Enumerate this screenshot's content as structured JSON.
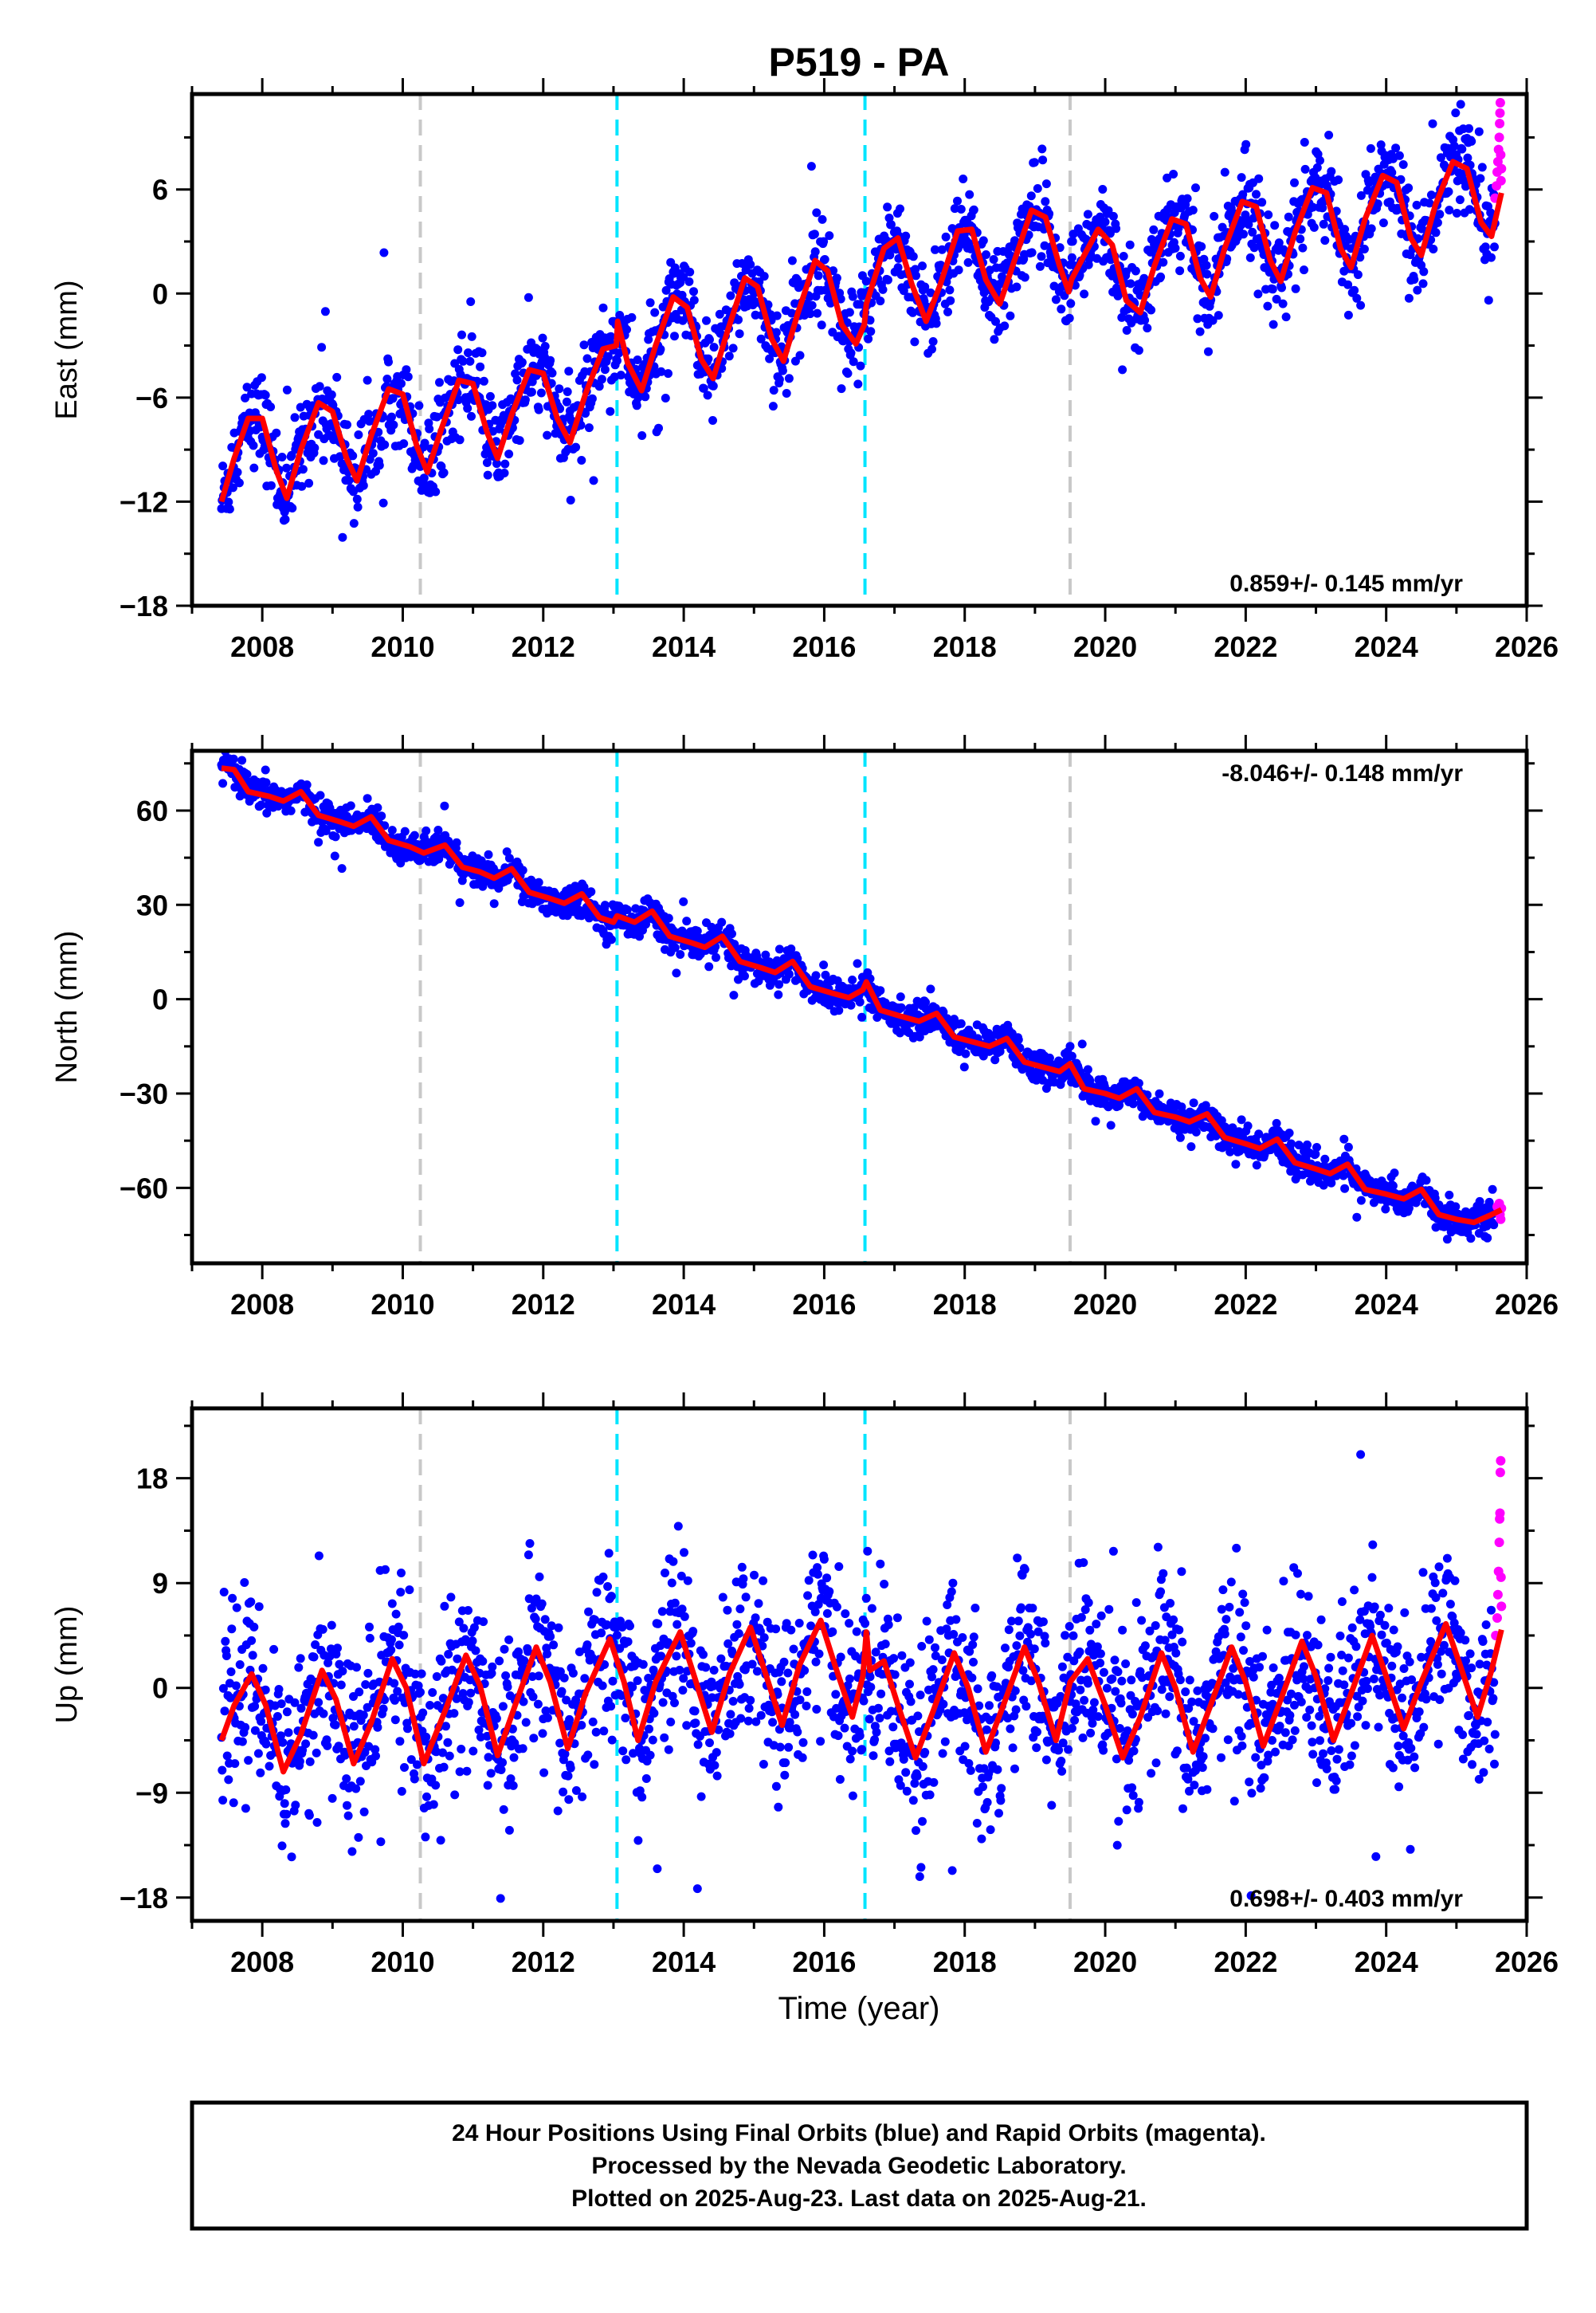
{
  "chart_data": {
    "title": "P519 - PA",
    "type": "scatter",
    "xlabel": "Time (year)",
    "xlim": [
      2007.0,
      2026.0
    ],
    "x_ticks": [
      2008,
      2010,
      2012,
      2014,
      2016,
      2018,
      2020,
      2022,
      2024,
      2026
    ],
    "colors": {
      "final": "#0000ff",
      "rapid": "#ff00ff",
      "model": "#ff0000",
      "equipment_change": "#c8c8c8",
      "earthquake": "#00e5ff"
    },
    "vertical_lines": [
      {
        "year": 2010.25,
        "kind": "equipment_change"
      },
      {
        "year": 2013.05,
        "kind": "earthquake"
      },
      {
        "year": 2016.58,
        "kind": "earthquake"
      },
      {
        "year": 2019.5,
        "kind": "equipment_change"
      }
    ],
    "panels": [
      {
        "name": "East",
        "ylabel": "East (mm)",
        "ylim": [
          -18,
          11.5
        ],
        "y_ticks": [
          -18,
          -12,
          -6,
          0,
          6
        ],
        "rate_text": "0.859+/- 0.145 mm/yr",
        "rate_position": "bottom-right",
        "model_points": [
          [
            2007.42,
            -12.0
          ],
          [
            2007.6,
            -9.5
          ],
          [
            2007.8,
            -7.2
          ],
          [
            2008.0,
            -7.2
          ],
          [
            2008.2,
            -10.2
          ],
          [
            2008.35,
            -11.8
          ],
          [
            2008.55,
            -9.0
          ],
          [
            2008.8,
            -6.3
          ],
          [
            2009.0,
            -6.8
          ],
          [
            2009.2,
            -9.5
          ],
          [
            2009.35,
            -10.8
          ],
          [
            2009.55,
            -8.2
          ],
          [
            2009.8,
            -5.5
          ],
          [
            2010.0,
            -5.8
          ],
          [
            2010.2,
            -8.8
          ],
          [
            2010.35,
            -10.3
          ],
          [
            2010.55,
            -7.8
          ],
          [
            2010.8,
            -5.0
          ],
          [
            2011.0,
            -5.2
          ],
          [
            2011.2,
            -8.0
          ],
          [
            2011.35,
            -9.5
          ],
          [
            2011.55,
            -7.0
          ],
          [
            2011.8,
            -4.4
          ],
          [
            2012.0,
            -4.6
          ],
          [
            2012.2,
            -7.2
          ],
          [
            2012.38,
            -8.6
          ],
          [
            2012.6,
            -5.8
          ],
          [
            2012.85,
            -3.2
          ],
          [
            2013.04,
            -3.0
          ],
          [
            2013.06,
            -1.6
          ],
          [
            2013.2,
            -4.0
          ],
          [
            2013.4,
            -5.6
          ],
          [
            2013.6,
            -3.0
          ],
          [
            2013.85,
            -0.2
          ],
          [
            2014.05,
            -0.8
          ],
          [
            2014.25,
            -3.8
          ],
          [
            2014.42,
            -4.9
          ],
          [
            2014.62,
            -2.2
          ],
          [
            2014.87,
            0.9
          ],
          [
            2015.05,
            0.4
          ],
          [
            2015.25,
            -2.6
          ],
          [
            2015.42,
            -3.9
          ],
          [
            2015.62,
            -1.2
          ],
          [
            2015.87,
            1.9
          ],
          [
            2016.05,
            1.3
          ],
          [
            2016.25,
            -1.8
          ],
          [
            2016.45,
            -2.9
          ],
          [
            2016.57,
            -1.8
          ],
          [
            2016.6,
            -0.6
          ],
          [
            2016.85,
            2.6
          ],
          [
            2017.05,
            3.2
          ],
          [
            2017.25,
            0.5
          ],
          [
            2017.45,
            -1.6
          ],
          [
            2017.65,
            0.5
          ],
          [
            2017.9,
            3.6
          ],
          [
            2018.1,
            3.7
          ],
          [
            2018.3,
            0.8
          ],
          [
            2018.5,
            -0.6
          ],
          [
            2018.7,
            1.8
          ],
          [
            2018.95,
            4.8
          ],
          [
            2019.15,
            4.4
          ],
          [
            2019.35,
            1.6
          ],
          [
            2019.48,
            0.1
          ],
          [
            2019.52,
            0.8
          ],
          [
            2019.7,
            2.2
          ],
          [
            2019.9,
            3.7
          ],
          [
            2020.1,
            2.8
          ],
          [
            2020.3,
            -0.4
          ],
          [
            2020.5,
            -1.1
          ],
          [
            2020.7,
            1.6
          ],
          [
            2020.95,
            4.3
          ],
          [
            2021.15,
            4.0
          ],
          [
            2021.35,
            0.9
          ],
          [
            2021.5,
            -0.2
          ],
          [
            2021.7,
            2.6
          ],
          [
            2021.95,
            5.3
          ],
          [
            2022.15,
            5.0
          ],
          [
            2022.35,
            1.9
          ],
          [
            2022.5,
            0.7
          ],
          [
            2022.7,
            3.5
          ],
          [
            2022.95,
            6.1
          ],
          [
            2023.15,
            5.8
          ],
          [
            2023.35,
            2.6
          ],
          [
            2023.5,
            1.5
          ],
          [
            2023.7,
            4.3
          ],
          [
            2023.95,
            6.8
          ],
          [
            2024.15,
            6.4
          ],
          [
            2024.35,
            3.2
          ],
          [
            2024.5,
            2.2
          ],
          [
            2024.7,
            5.1
          ],
          [
            2024.95,
            7.6
          ],
          [
            2025.15,
            7.2
          ],
          [
            2025.35,
            4.1
          ],
          [
            2025.5,
            3.3
          ],
          [
            2025.64,
            5.8
          ]
        ],
        "rapid_points": [
          [
            2025.55,
            5.5
          ],
          [
            2025.57,
            6.2
          ],
          [
            2025.58,
            7.0
          ],
          [
            2025.59,
            7.6
          ],
          [
            2025.6,
            8.3
          ],
          [
            2025.61,
            9.0
          ],
          [
            2025.615,
            9.8
          ],
          [
            2025.62,
            10.4
          ],
          [
            2025.625,
            11.0
          ],
          [
            2025.63,
            8.0
          ],
          [
            2025.635,
            6.5
          ],
          [
            2025.64,
            7.2
          ]
        ]
      },
      {
        "name": "North",
        "ylabel": "North (mm)",
        "ylim": [
          -84,
          79
        ],
        "y_ticks": [
          -60,
          -30,
          0,
          30,
          60
        ],
        "rate_text": "-8.046+/- 0.148 mm/yr",
        "rate_position": "top-right",
        "model_points": [
          [
            2007.42,
            73.5
          ],
          [
            2007.6,
            73.0
          ],
          [
            2007.8,
            66.0
          ],
          [
            2008.1,
            64.5
          ],
          [
            2008.3,
            63.0
          ],
          [
            2008.55,
            66.0
          ],
          [
            2008.8,
            58.5
          ],
          [
            2009.1,
            56.5
          ],
          [
            2009.3,
            55.0
          ],
          [
            2009.55,
            58.0
          ],
          [
            2009.8,
            50.5
          ],
          [
            2010.1,
            48.5
          ],
          [
            2010.3,
            46.5
          ],
          [
            2010.6,
            49.0
          ],
          [
            2010.85,
            42.0
          ],
          [
            2011.1,
            40.5
          ],
          [
            2011.3,
            38.5
          ],
          [
            2011.55,
            41.5
          ],
          [
            2011.8,
            34.0
          ],
          [
            2012.1,
            32.0
          ],
          [
            2012.3,
            30.5
          ],
          [
            2012.55,
            33.5
          ],
          [
            2012.8,
            26.0
          ],
          [
            2013.0,
            24.5
          ],
          [
            2013.05,
            26.5
          ],
          [
            2013.3,
            24.5
          ],
          [
            2013.55,
            28.0
          ],
          [
            2013.8,
            20.0
          ],
          [
            2014.1,
            18.0
          ],
          [
            2014.3,
            16.5
          ],
          [
            2014.55,
            20.0
          ],
          [
            2014.8,
            12.0
          ],
          [
            2015.1,
            10.0
          ],
          [
            2015.3,
            8.5
          ],
          [
            2015.55,
            12.0
          ],
          [
            2015.8,
            4.0
          ],
          [
            2016.1,
            2.0
          ],
          [
            2016.35,
            0.5
          ],
          [
            2016.55,
            3.0
          ],
          [
            2016.6,
            5.5
          ],
          [
            2016.8,
            -3.5
          ],
          [
            2017.1,
            -5.5
          ],
          [
            2017.35,
            -7.0
          ],
          [
            2017.6,
            -4.5
          ],
          [
            2017.85,
            -12.0
          ],
          [
            2018.1,
            -13.5
          ],
          [
            2018.35,
            -15.0
          ],
          [
            2018.6,
            -12.5
          ],
          [
            2018.85,
            -20.0
          ],
          [
            2019.1,
            -21.5
          ],
          [
            2019.35,
            -23.0
          ],
          [
            2019.5,
            -20.5
          ],
          [
            2019.7,
            -28.5
          ],
          [
            2020.0,
            -30.0
          ],
          [
            2020.2,
            -31.5
          ],
          [
            2020.45,
            -28.5
          ],
          [
            2020.7,
            -36.0
          ],
          [
            2021.0,
            -37.5
          ],
          [
            2021.2,
            -39.0
          ],
          [
            2021.45,
            -36.5
          ],
          [
            2021.7,
            -44.0
          ],
          [
            2022.0,
            -46.0
          ],
          [
            2022.2,
            -47.5
          ],
          [
            2022.45,
            -44.5
          ],
          [
            2022.7,
            -52.0
          ],
          [
            2023.0,
            -54.0
          ],
          [
            2023.2,
            -55.5
          ],
          [
            2023.45,
            -52.5
          ],
          [
            2023.7,
            -60.5
          ],
          [
            2024.0,
            -62.0
          ],
          [
            2024.25,
            -63.5
          ],
          [
            2024.5,
            -60.5
          ],
          [
            2024.75,
            -68.5
          ],
          [
            2025.0,
            -70.0
          ],
          [
            2025.25,
            -71.0
          ],
          [
            2025.5,
            -68.5
          ],
          [
            2025.64,
            -67.0
          ]
        ],
        "rapid_points": [
          [
            2025.58,
            -66.0
          ],
          [
            2025.6,
            -67.5
          ],
          [
            2025.61,
            -65.0
          ],
          [
            2025.62,
            -68.5
          ],
          [
            2025.63,
            -70.0
          ],
          [
            2025.64,
            -66.5
          ]
        ]
      },
      {
        "name": "Up",
        "ylabel": "Up (mm)",
        "ylim": [
          -20,
          24
        ],
        "y_ticks": [
          -18,
          -9,
          0,
          9,
          18
        ],
        "rate_text": "0.698+/- 0.403 mm/yr",
        "rate_position": "bottom-right",
        "model_points": [
          [
            2007.42,
            -4.5
          ],
          [
            2007.6,
            -1.5
          ],
          [
            2007.85,
            1.2
          ],
          [
            2008.05,
            -1.5
          ],
          [
            2008.3,
            -7.2
          ],
          [
            2008.55,
            -4.0
          ],
          [
            2008.85,
            1.5
          ],
          [
            2009.05,
            -1.0
          ],
          [
            2009.3,
            -6.5
          ],
          [
            2009.55,
            -3.0
          ],
          [
            2009.85,
            2.5
          ],
          [
            2010.05,
            0.0
          ],
          [
            2010.3,
            -6.5
          ],
          [
            2010.6,
            -2.0
          ],
          [
            2010.9,
            2.8
          ],
          [
            2011.1,
            0.2
          ],
          [
            2011.35,
            -5.8
          ],
          [
            2011.6,
            -1.5
          ],
          [
            2011.9,
            3.5
          ],
          [
            2012.1,
            0.5
          ],
          [
            2012.35,
            -5.2
          ],
          [
            2012.6,
            -0.5
          ],
          [
            2012.95,
            4.2
          ],
          [
            2013.15,
            0.5
          ],
          [
            2013.35,
            -4.5
          ],
          [
            2013.6,
            0.5
          ],
          [
            2013.95,
            4.8
          ],
          [
            2014.15,
            1.0
          ],
          [
            2014.4,
            -3.8
          ],
          [
            2014.65,
            1.2
          ],
          [
            2014.95,
            5.2
          ],
          [
            2015.15,
            1.5
          ],
          [
            2015.4,
            -3.2
          ],
          [
            2015.65,
            2.0
          ],
          [
            2015.95,
            5.8
          ],
          [
            2016.15,
            2.0
          ],
          [
            2016.4,
            -2.5
          ],
          [
            2016.55,
            1.0
          ],
          [
            2016.6,
            4.8
          ],
          [
            2016.65,
            1.5
          ],
          [
            2016.85,
            2.3
          ],
          [
            2017.05,
            -1.5
          ],
          [
            2017.3,
            -6.0
          ],
          [
            2017.55,
            -2.0
          ],
          [
            2017.85,
            3.0
          ],
          [
            2018.05,
            0.0
          ],
          [
            2018.3,
            -5.5
          ],
          [
            2018.55,
            -1.5
          ],
          [
            2018.85,
            3.5
          ],
          [
            2019.05,
            0.5
          ],
          [
            2019.3,
            -4.5
          ],
          [
            2019.5,
            0.5
          ],
          [
            2019.75,
            2.5
          ],
          [
            2020.0,
            -1.5
          ],
          [
            2020.25,
            -6.0
          ],
          [
            2020.5,
            -2.5
          ],
          [
            2020.8,
            3.0
          ],
          [
            2021.0,
            0.0
          ],
          [
            2021.25,
            -5.5
          ],
          [
            2021.5,
            -1.5
          ],
          [
            2021.8,
            3.5
          ],
          [
            2022.0,
            0.5
          ],
          [
            2022.25,
            -5.0
          ],
          [
            2022.5,
            -1.0
          ],
          [
            2022.8,
            4.0
          ],
          [
            2023.0,
            1.0
          ],
          [
            2023.25,
            -4.5
          ],
          [
            2023.5,
            -0.5
          ],
          [
            2023.8,
            4.5
          ],
          [
            2024.0,
            1.0
          ],
          [
            2024.25,
            -3.5
          ],
          [
            2024.5,
            0.5
          ],
          [
            2024.85,
            5.5
          ],
          [
            2025.05,
            2.0
          ],
          [
            2025.3,
            -2.5
          ],
          [
            2025.5,
            1.5
          ],
          [
            2025.64,
            5.0
          ]
        ],
        "rapid_points": [
          [
            2025.56,
            4.5
          ],
          [
            2025.58,
            6.0
          ],
          [
            2025.59,
            8.0
          ],
          [
            2025.6,
            10.0
          ],
          [
            2025.61,
            12.5
          ],
          [
            2025.615,
            14.5
          ],
          [
            2025.62,
            15.0
          ],
          [
            2025.625,
            18.5
          ],
          [
            2025.63,
            19.5
          ],
          [
            2025.635,
            9.5
          ],
          [
            2025.64,
            7.0
          ]
        ]
      }
    ]
  },
  "footer": {
    "line1": "24 Hour Positions Using Final Orbits (blue) and Rapid Orbits (magenta).",
    "line2": "Processed by the Nevada Geodetic Laboratory.",
    "line3": "Plotted on 2025-Aug-23. Last data on 2025-Aug-21."
  }
}
